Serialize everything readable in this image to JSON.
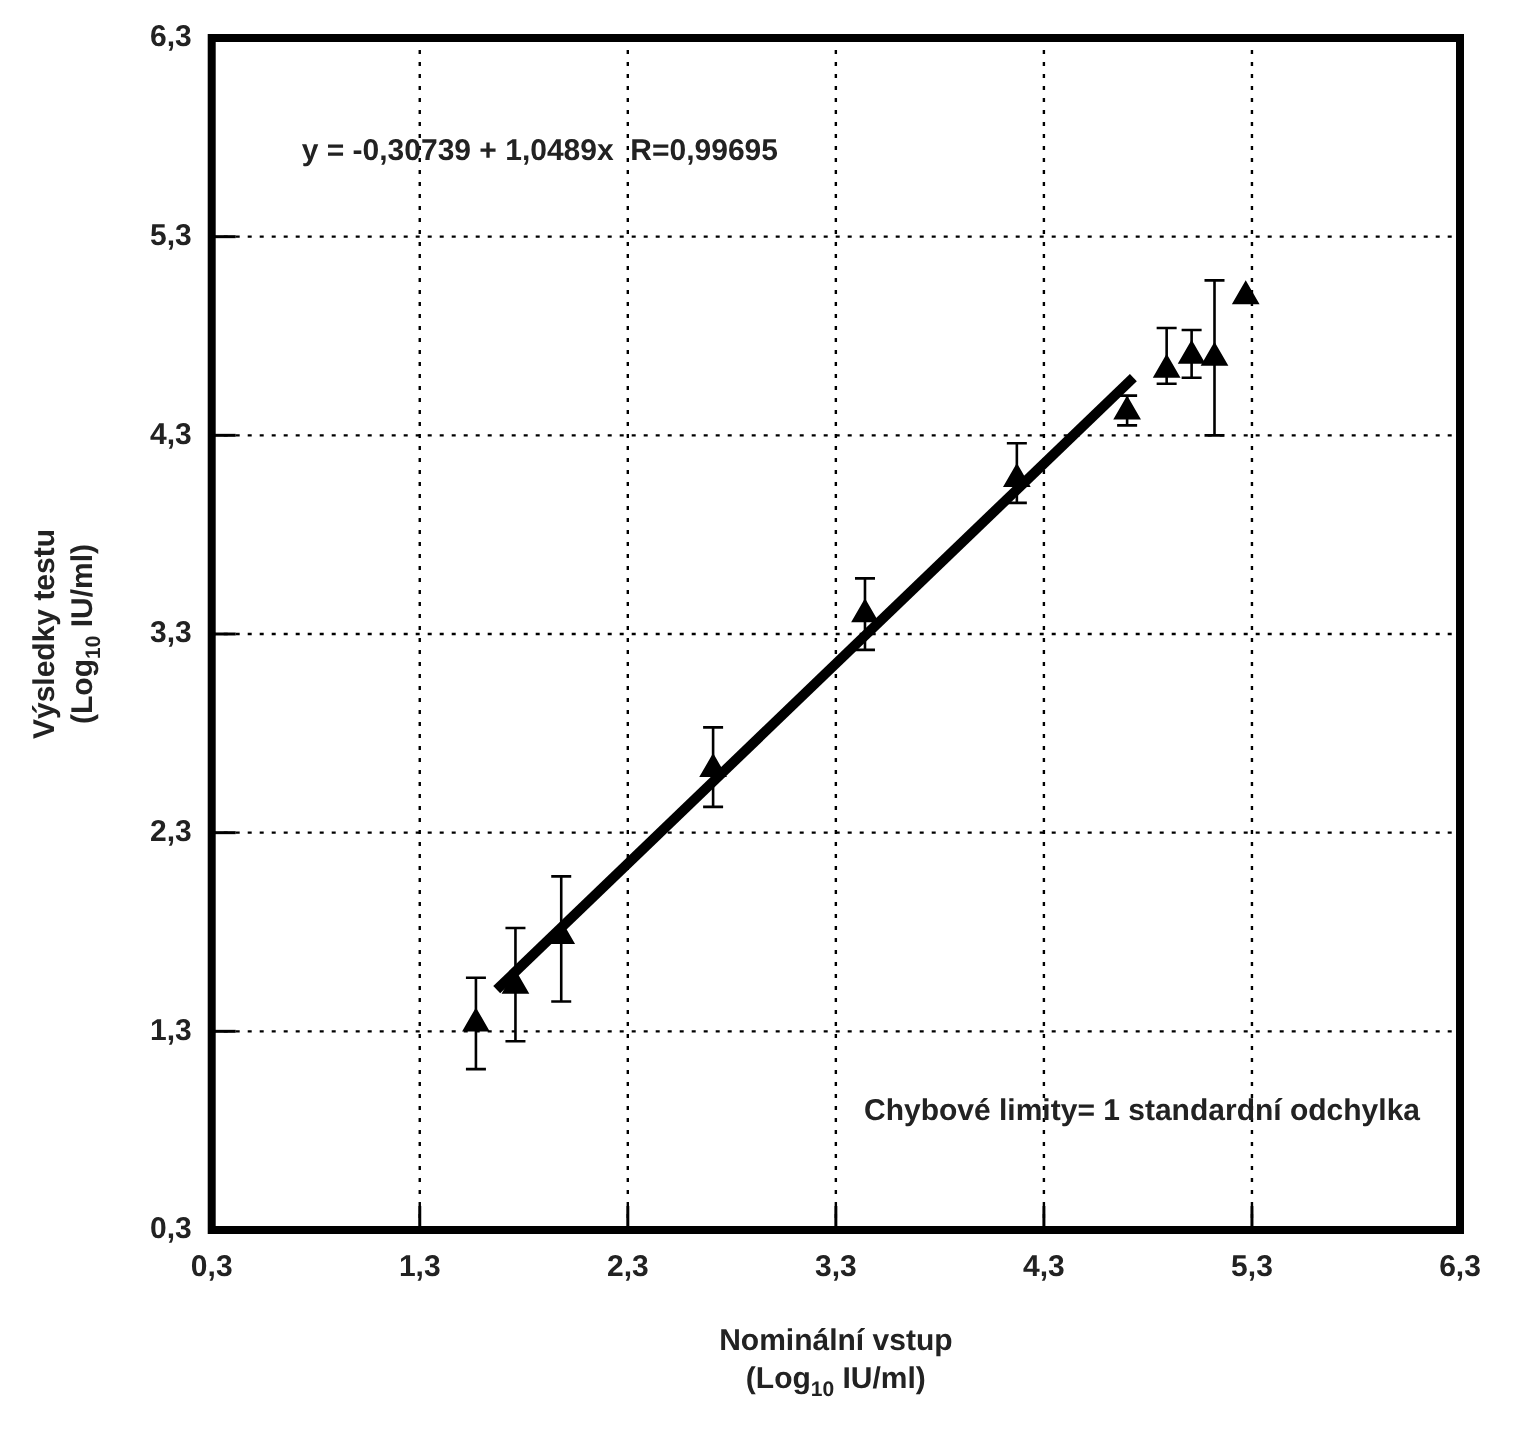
{
  "chart_data": {
    "type": "scatter",
    "xlabel": "Nominální vstup\n(Log$_{10}$ IU/ml)",
    "ylabel": "Výsledky testu\n(Log$_{10}$ IU/ml)",
    "annotations": [
      "y = -0,30739 + 1,0489x  R=0,99695",
      "Chybové limity= 1 standardní odchylka"
    ],
    "xlim": [
      0.3,
      6.3
    ],
    "ylim": [
      0.3,
      6.3
    ],
    "xticks": [
      {
        "value": 0.3,
        "label": "0,3"
      },
      {
        "value": 1.3,
        "label": "1,3"
      },
      {
        "value": 2.3,
        "label": "2,3"
      },
      {
        "value": 3.3,
        "label": "3,3"
      },
      {
        "value": 4.3,
        "label": "4,3"
      },
      {
        "value": 5.3,
        "label": "5,3"
      },
      {
        "value": 6.3,
        "label": "6,3"
      }
    ],
    "yticks": [
      {
        "value": 0.3,
        "label": "0,3"
      },
      {
        "value": 1.3,
        "label": "1,3"
      },
      {
        "value": 2.3,
        "label": "2,3"
      },
      {
        "value": 3.3,
        "label": "3,3"
      },
      {
        "value": 4.3,
        "label": "4,3"
      },
      {
        "value": 5.3,
        "label": "5,3"
      },
      {
        "value": 6.3,
        "label": "6,3"
      }
    ],
    "grid": true,
    "legend": false,
    "series": [
      {
        "type": "scatter",
        "color": "#000000",
        "marker": "triangle",
        "x": [
          1.57,
          1.76,
          1.98,
          2.71,
          3.44,
          4.17,
          4.7,
          4.89,
          5.01,
          5.12,
          5.27
        ],
        "values": [
          1.34,
          1.53,
          1.78,
          2.62,
          3.4,
          4.08,
          4.42,
          4.63,
          4.7,
          4.69,
          5.0
        ],
        "errors": [
          [
            1.11,
            1.57
          ],
          [
            1.25,
            1.82
          ],
          [
            1.45,
            2.08
          ],
          [
            2.43,
            2.83
          ],
          [
            3.22,
            3.58
          ],
          [
            3.96,
            4.26
          ],
          [
            4.35,
            4.5
          ],
          [
            4.56,
            4.84
          ],
          [
            4.59,
            4.83
          ],
          [
            4.3,
            5.08
          ],
          null
        ]
      },
      {
        "type": "line",
        "color": "#000000",
        "line_style": "solid",
        "x": [
          1.67,
          4.73
        ],
        "values": [
          1.51,
          4.59
        ]
      }
    ]
  }
}
